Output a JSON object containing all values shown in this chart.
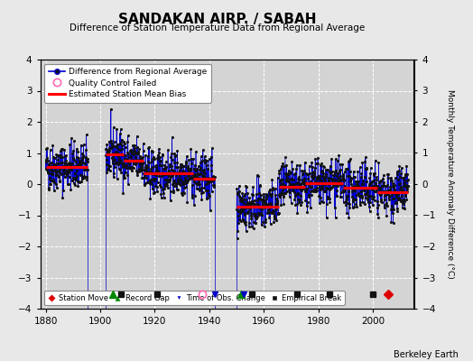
{
  "title": "SANDAKAN AIRP. / SABAH",
  "subtitle": "Difference of Station Temperature Data from Regional Average",
  "ylabel": "Monthly Temperature Anomaly Difference (°C)",
  "xlim": [
    1878,
    2015
  ],
  "ylim": [
    -4,
    4
  ],
  "yticks": [
    -4,
    -3,
    -2,
    -1,
    0,
    1,
    2,
    3,
    4
  ],
  "xticks": [
    1880,
    1900,
    1920,
    1940,
    1960,
    1980,
    2000
  ],
  "background_color": "#e8e8e8",
  "plot_bg_color": "#d4d4d4",
  "grid_color": "#ffffff",
  "segments": [
    {
      "x_start": 1880.0,
      "x_end": 1895.5,
      "bias": 0.55
    },
    {
      "x_start": 1902.0,
      "x_end": 1908.5,
      "bias": 0.95
    },
    {
      "x_start": 1908.5,
      "x_end": 1916.0,
      "bias": 0.75
    },
    {
      "x_start": 1916.0,
      "x_end": 1934.0,
      "bias": 0.35
    },
    {
      "x_start": 1934.0,
      "x_end": 1942.0,
      "bias": 0.18
    },
    {
      "x_start": 1950.0,
      "x_end": 1965.5,
      "bias": -0.72
    },
    {
      "x_start": 1965.5,
      "x_end": 1975.0,
      "bias": -0.1
    },
    {
      "x_start": 1975.0,
      "x_end": 1989.0,
      "bias": 0.02
    },
    {
      "x_start": 1989.0,
      "x_end": 2001.5,
      "bias": -0.12
    },
    {
      "x_start": 2001.5,
      "x_end": 2013.0,
      "bias": -0.25
    }
  ],
  "record_gaps": [
    1904.5,
    1951.5
  ],
  "empirical_breaks": [
    1907.5,
    1921.0,
    1955.5,
    1972.0,
    1984.0,
    2000.0
  ],
  "time_of_obs_changes": [
    1942.0,
    1952.5
  ],
  "station_moves": [
    2005.5
  ],
  "qc_failed": [
    1937.5
  ],
  "line_color": "#0000cc",
  "bias_color": "#ff0000",
  "marker_color": "#111111",
  "gap_color": "#008800",
  "break_color": "#111111",
  "obs_change_color": "#0000cc",
  "move_color": "#dd0000",
  "qc_color": "#ff69b4",
  "watermark": "Berkeley Earth",
  "noise_std": 0.38
}
